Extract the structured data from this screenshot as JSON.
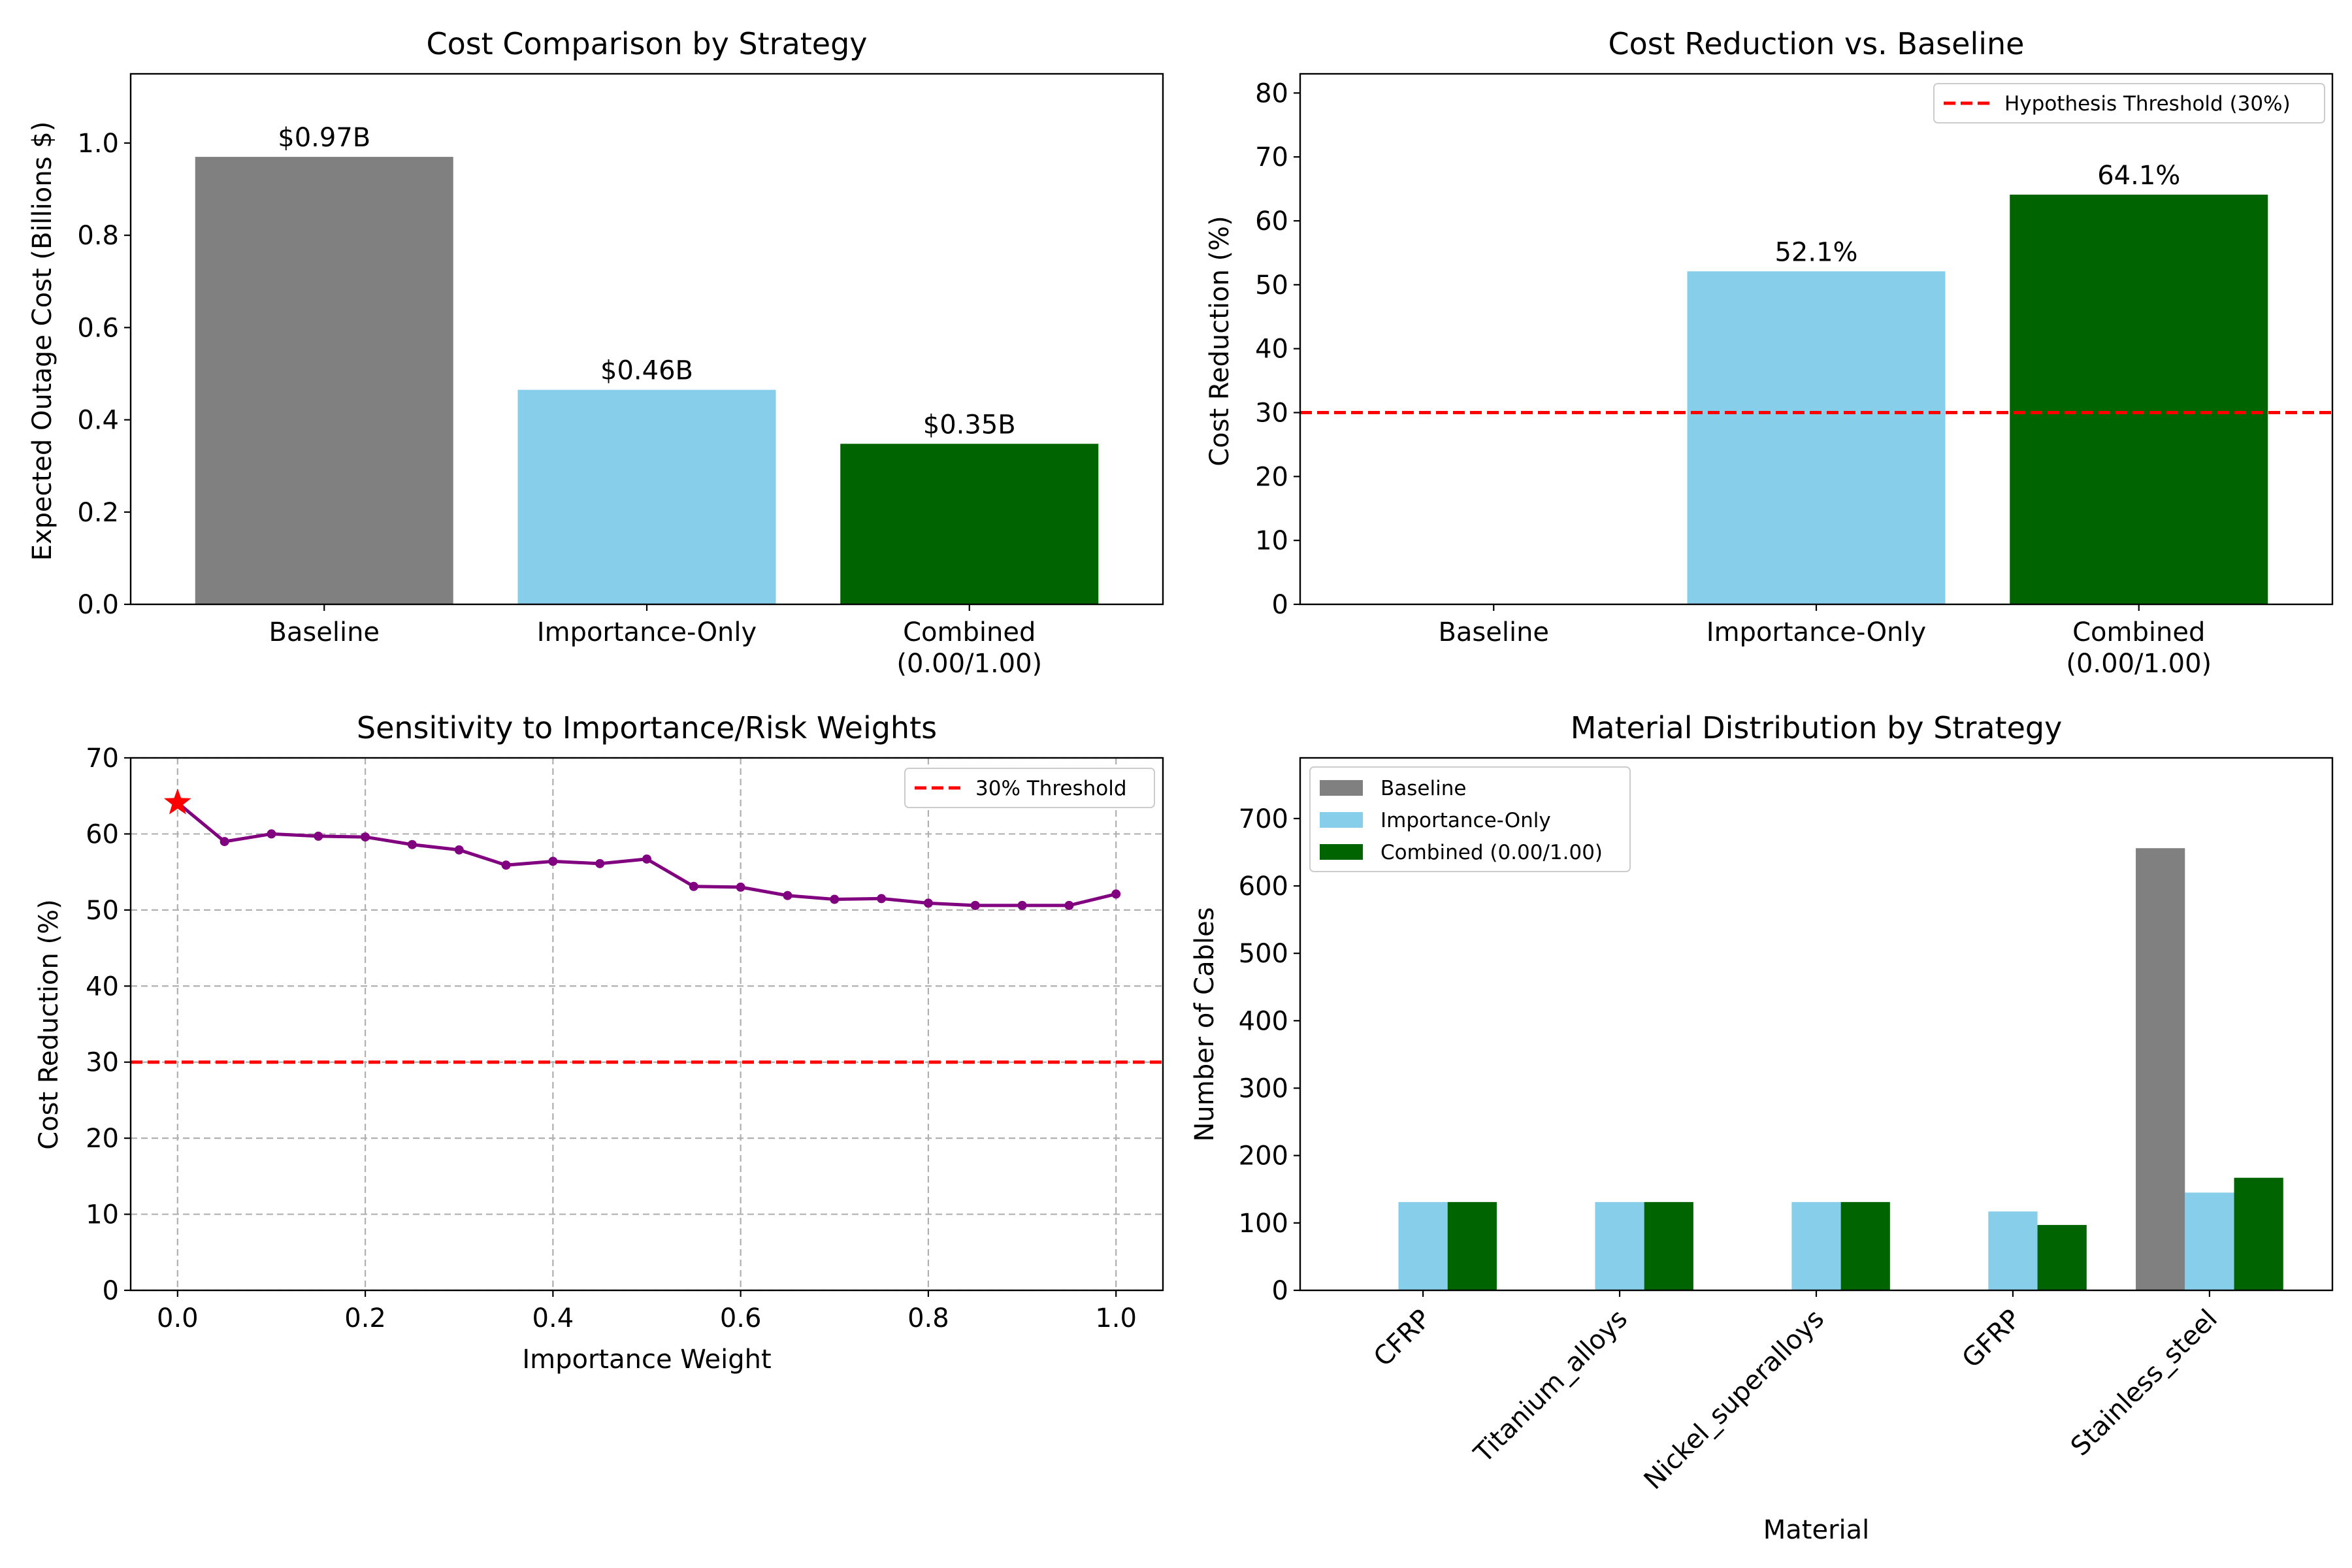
{
  "chart_data": [
    {
      "type": "bar",
      "title": "Cost Comparison by Strategy",
      "xlabel": "",
      "ylabel": "Expected Outage Cost (Billions $)",
      "ylim": [
        0,
        1.15
      ],
      "yticks": [
        "0.0",
        "0.2",
        "0.4",
        "0.6",
        "0.8",
        "1.0"
      ],
      "categories": [
        [
          "Baseline"
        ],
        [
          "Importance-Only"
        ],
        [
          "Combined",
          "(0.00/1.00)"
        ]
      ],
      "values": [
        0.97,
        0.465,
        0.348
      ],
      "value_labels": [
        "$0.97B",
        "$0.46B",
        "$0.35B"
      ],
      "colors": [
        "#808080",
        "#87CEEB",
        "#006400"
      ],
      "grid": false
    },
    {
      "type": "bar",
      "title": "Cost Reduction vs. Baseline",
      "xlabel": "",
      "ylabel": "Cost Reduction (%)",
      "ylim": [
        0,
        83
      ],
      "yticks": [
        "0",
        "10",
        "20",
        "30",
        "40",
        "50",
        "60",
        "70",
        "80"
      ],
      "categories": [
        [
          "Baseline"
        ],
        [
          "Importance-Only"
        ],
        [
          "Combined",
          "(0.00/1.00)"
        ]
      ],
      "values": [
        0,
        52.1,
        64.1
      ],
      "value_labels": [
        "",
        "52.1%",
        "64.1%"
      ],
      "colors": [
        "#808080",
        "#87CEEB",
        "#006400"
      ],
      "threshold": {
        "value": 30,
        "label": "Hypothesis Threshold (30%)",
        "color": "#FF0000"
      },
      "legend_position": "top-right",
      "grid": false
    },
    {
      "type": "line",
      "title": "Sensitivity to Importance/Risk Weights",
      "xlabel": "Importance Weight",
      "ylabel": "Cost Reduction (%)",
      "xlim": [
        -0.05,
        1.05
      ],
      "ylim": [
        0,
        70
      ],
      "xticks": [
        "0.0",
        "0.2",
        "0.4",
        "0.6",
        "0.8",
        "1.0"
      ],
      "yticks": [
        "0",
        "10",
        "20",
        "30",
        "40",
        "50",
        "60",
        "70"
      ],
      "x": [
        0.0,
        0.05,
        0.1,
        0.15,
        0.2,
        0.25,
        0.3,
        0.35,
        0.4,
        0.45,
        0.5,
        0.55,
        0.6,
        0.65,
        0.7,
        0.75,
        0.8,
        0.85,
        0.9,
        0.95,
        1.0
      ],
      "y": [
        64.1,
        59.0,
        60.0,
        59.7,
        59.6,
        58.6,
        57.9,
        55.9,
        56.4,
        56.1,
        56.7,
        53.1,
        53.0,
        51.9,
        51.4,
        51.5,
        50.9,
        50.6,
        50.6,
        50.6,
        52.1
      ],
      "line_color": "#800080",
      "best_point": {
        "x": 0.0,
        "y": 64.1,
        "color": "#FF0000",
        "marker": "star"
      },
      "threshold": {
        "value": 30,
        "label": "30% Threshold",
        "color": "#FF0000"
      },
      "legend_position": "top-right",
      "grid": true
    },
    {
      "type": "bar",
      "title": "Material Distribution by Strategy",
      "xlabel": "Material",
      "ylabel": "Number of Cables",
      "ylim": [
        0,
        790
      ],
      "yticks": [
        "0",
        "100",
        "200",
        "300",
        "400",
        "500",
        "600",
        "700"
      ],
      "categories": [
        "CFRP",
        "Titanium_alloys",
        "Nickel_superalloys",
        "GFRP",
        "Stainless_steel"
      ],
      "series": [
        {
          "name": "Baseline",
          "color": "#808080",
          "values": [
            0,
            0,
            0,
            0,
            656
          ]
        },
        {
          "name": "Importance-Only",
          "color": "#87CEEB",
          "values": [
            131,
            131,
            131,
            117,
            145
          ]
        },
        {
          "name": "Combined (0.00/1.00)",
          "color": "#006400",
          "values": [
            131,
            131,
            131,
            97,
            167
          ]
        }
      ],
      "legend_position": "top-left",
      "grid": false
    }
  ]
}
